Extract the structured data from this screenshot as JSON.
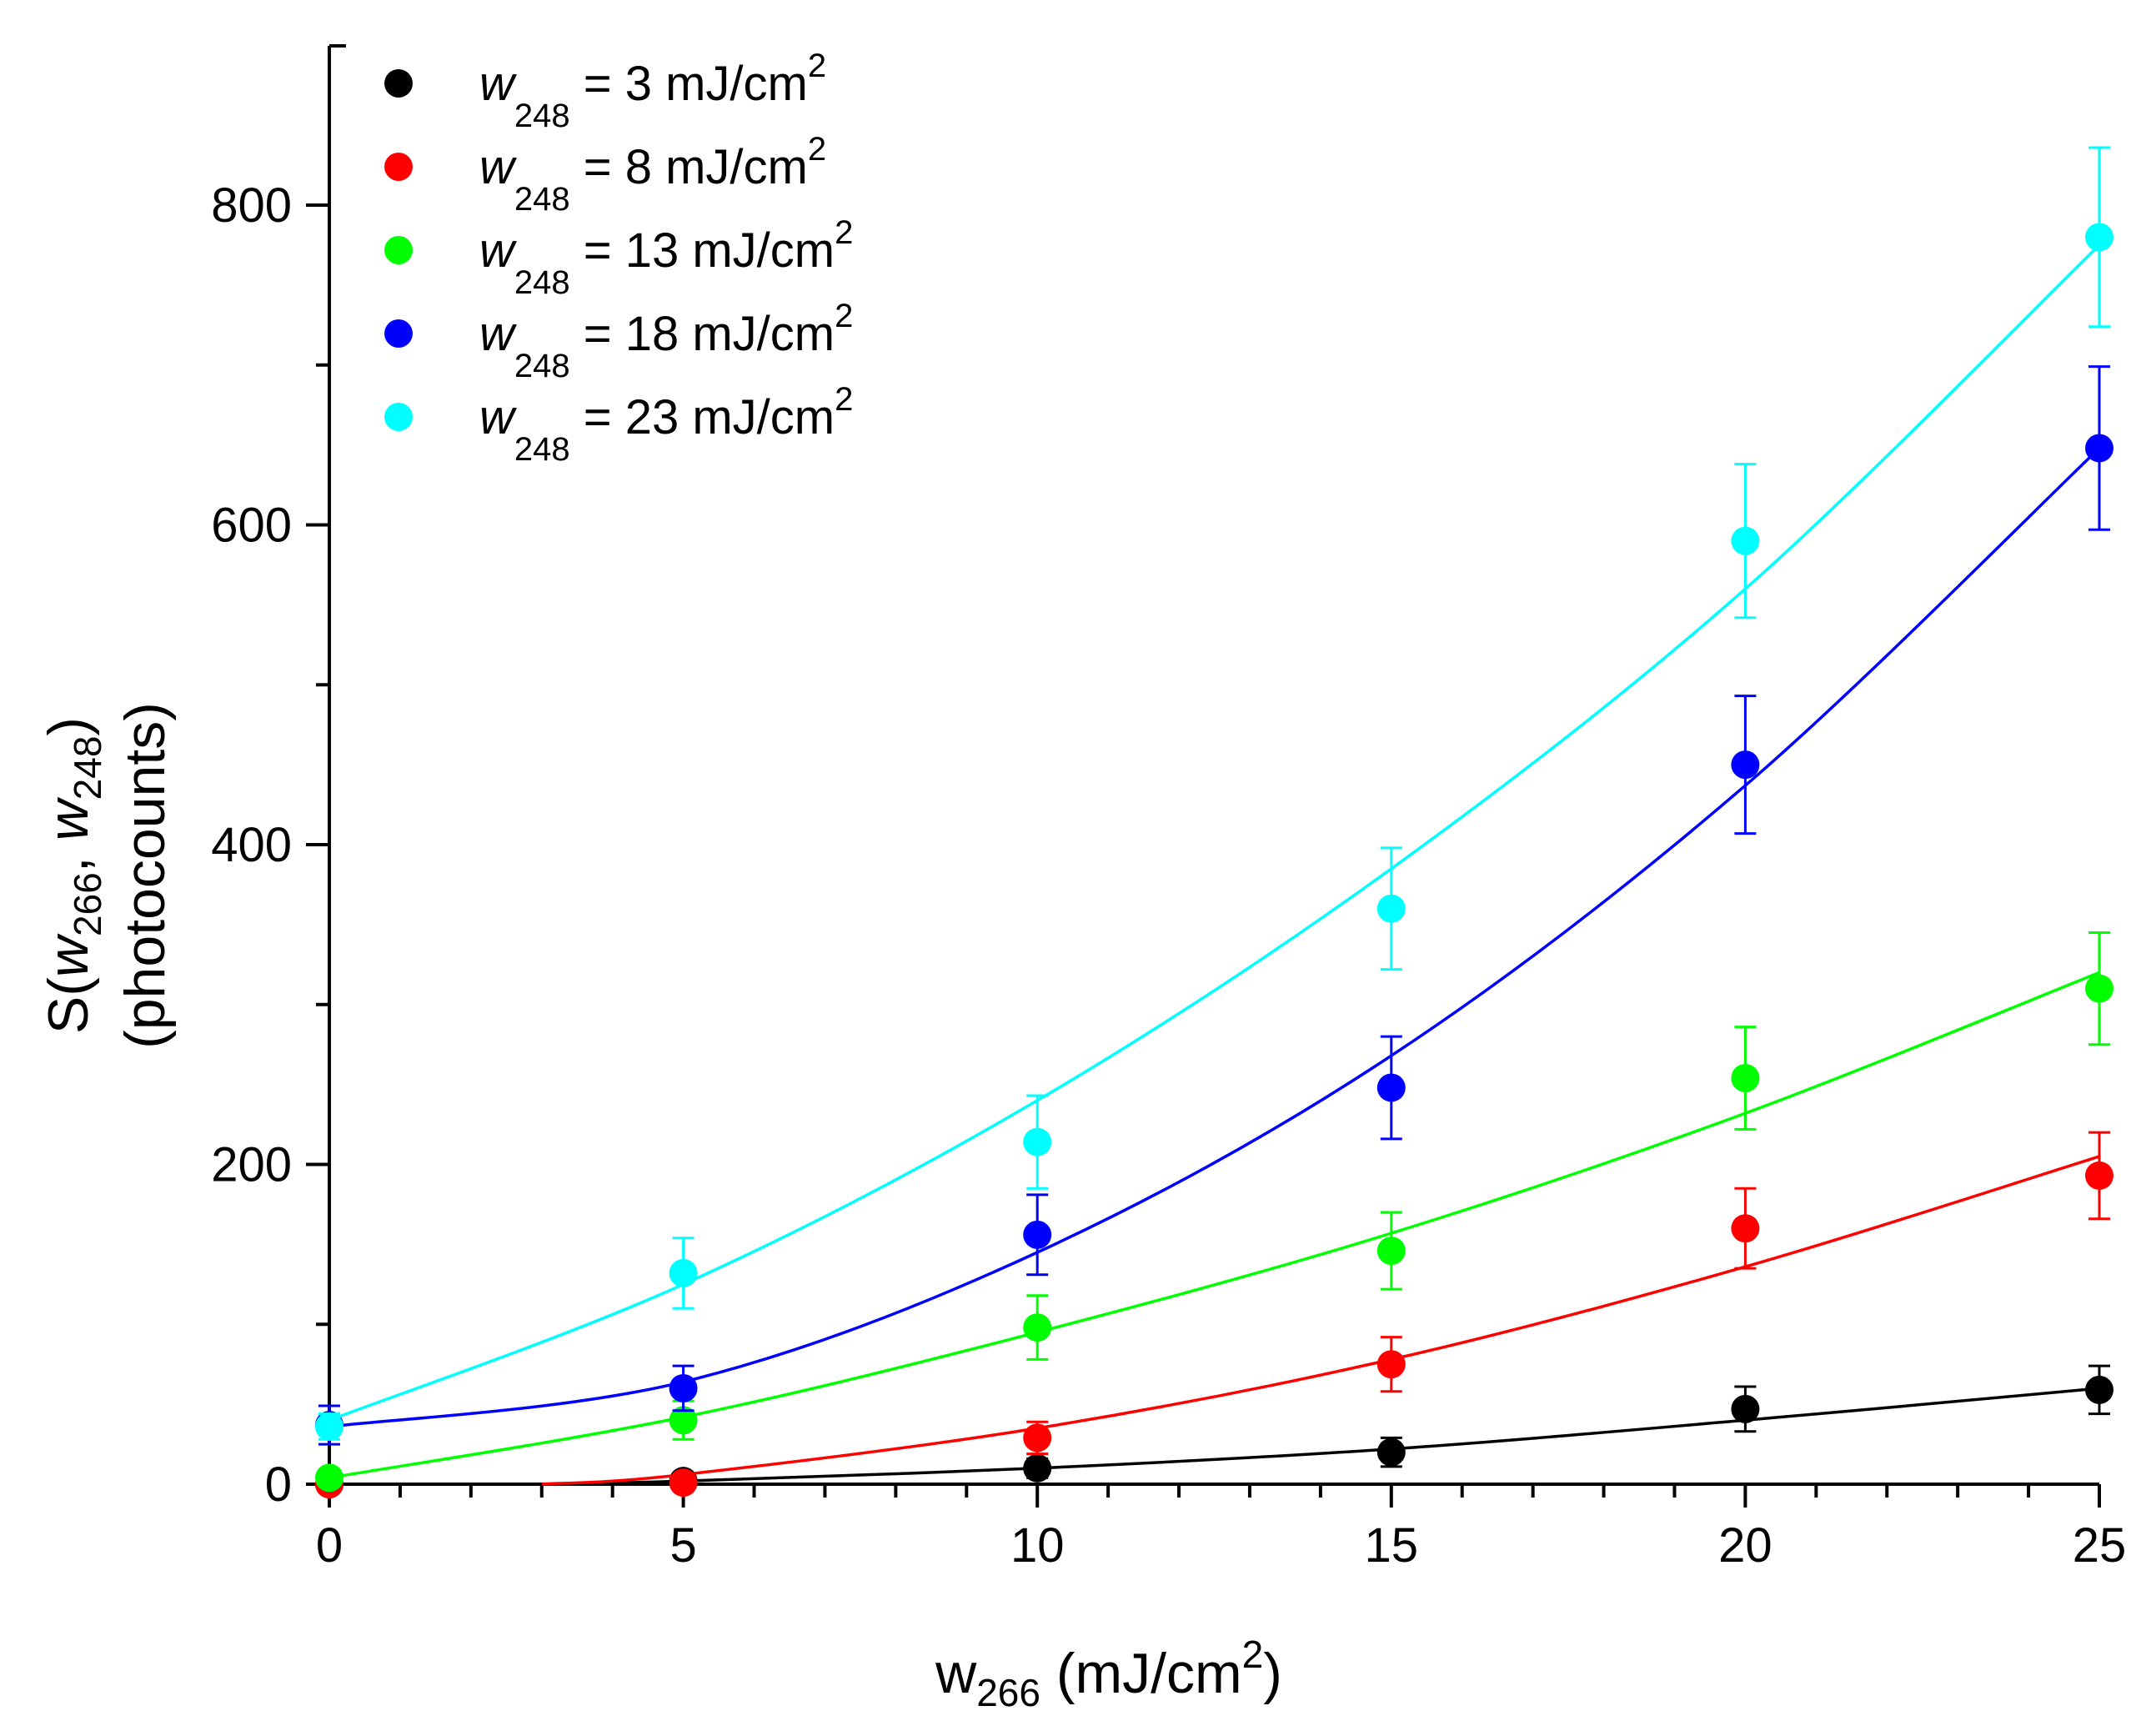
{
  "chart_data": {
    "type": "scatter",
    "title": "",
    "xlabel": {
      "main": "w",
      "sub": "266",
      "unit_open": " (mJ/cm",
      "unit_sup": "2",
      "unit_close": ")"
    },
    "ylabel": {
      "line1": {
        "pre": "S(",
        "w1": "w",
        "sub1": "266",
        "comma": ", ",
        "w2": "w",
        "sub2": "248",
        "close": ")"
      },
      "line2": "(photocounts)"
    },
    "xlim": [
      0,
      25
    ],
    "ylim": [
      0,
      900
    ],
    "xticks": [
      0,
      5,
      10,
      15,
      20,
      25
    ],
    "xtick_labels": [
      "0",
      "5",
      "10",
      "15",
      "20",
      "25"
    ],
    "yticks": [
      0,
      200,
      400,
      600,
      800
    ],
    "ytick_labels": [
      "0",
      "200",
      "400",
      "600",
      "800"
    ],
    "legend_position": "top-left",
    "series": [
      {
        "name": "w248 = 3 mJ/cm2",
        "legend": {
          "w": "w",
          "sub": "248",
          "value": " = 3 mJ/cm",
          "sup": "2"
        },
        "color": "#000000",
        "x": [
          0,
          5,
          10,
          15,
          20,
          25
        ],
        "y": [
          0,
          2,
          10,
          20,
          47,
          59
        ],
        "yerr": [
          0,
          3,
          6,
          9,
          14,
          15
        ],
        "fit": [
          [
            3,
            0
          ],
          [
            5,
            2
          ],
          [
            10,
            10
          ],
          [
            15,
            22
          ],
          [
            20,
            40
          ],
          [
            25,
            60
          ]
        ]
      },
      {
        "name": "w248 = 8 mJ/cm2",
        "legend": {
          "w": "w",
          "sub": "248",
          "value": " = 8 mJ/cm",
          "sup": "2"
        },
        "color": "#ff0000",
        "x": [
          0,
          5,
          10,
          15,
          20,
          25
        ],
        "y": [
          0,
          1,
          29,
          75,
          160,
          193
        ],
        "yerr": [
          0,
          4,
          10,
          17,
          25,
          27
        ],
        "fit": [
          [
            3,
            0
          ],
          [
            5,
            6
          ],
          [
            10,
            35
          ],
          [
            15,
            78
          ],
          [
            20,
            136
          ],
          [
            25,
            205
          ]
        ]
      },
      {
        "name": "w248 = 13 mJ/cm2",
        "legend": {
          "w": "w",
          "sub": "248",
          "value": " = 13 mJ/cm",
          "sup": "2"
        },
        "color": "#00ff00",
        "x": [
          0,
          5,
          10,
          15,
          20,
          25
        ],
        "y": [
          4,
          40,
          98,
          146,
          254,
          310
        ],
        "yerr": [
          4,
          12,
          20,
          24,
          32,
          35
        ],
        "fit": [
          [
            0,
            4
          ],
          [
            5,
            42
          ],
          [
            10,
            95
          ],
          [
            15,
            157
          ],
          [
            20,
            232
          ],
          [
            25,
            320
          ]
        ]
      },
      {
        "name": "w248 = 18 mJ/cm2",
        "legend": {
          "w": "w",
          "sub": "248",
          "value": " = 18 mJ/cm",
          "sup": "2"
        },
        "color": "#0000ff",
        "x": [
          0,
          5,
          10,
          15,
          20,
          25
        ],
        "y": [
          37,
          60,
          156,
          248,
          450,
          648
        ],
        "yerr": [
          12,
          14,
          25,
          32,
          43,
          51
        ],
        "fit": [
          [
            0,
            36
          ],
          [
            5,
            64
          ],
          [
            10,
            145
          ],
          [
            15,
            268
          ],
          [
            20,
            437
          ],
          [
            25,
            648
          ]
        ]
      },
      {
        "name": "w248 = 23 mJ/cm2",
        "legend": {
          "w": "w",
          "sub": "248",
          "value": " = 23 mJ/cm",
          "sup": "2"
        },
        "color": "#00ffff",
        "x": [
          0,
          5,
          10,
          15,
          20,
          25
        ],
        "y": [
          36,
          132,
          214,
          360,
          590,
          780
        ],
        "yerr": [
          8,
          22,
          29,
          38,
          48,
          56
        ],
        "fit": [
          [
            0,
            40
          ],
          [
            5,
            125
          ],
          [
            10,
            240
          ],
          [
            15,
            385
          ],
          [
            20,
            560
          ],
          [
            25,
            775
          ]
        ]
      }
    ]
  }
}
